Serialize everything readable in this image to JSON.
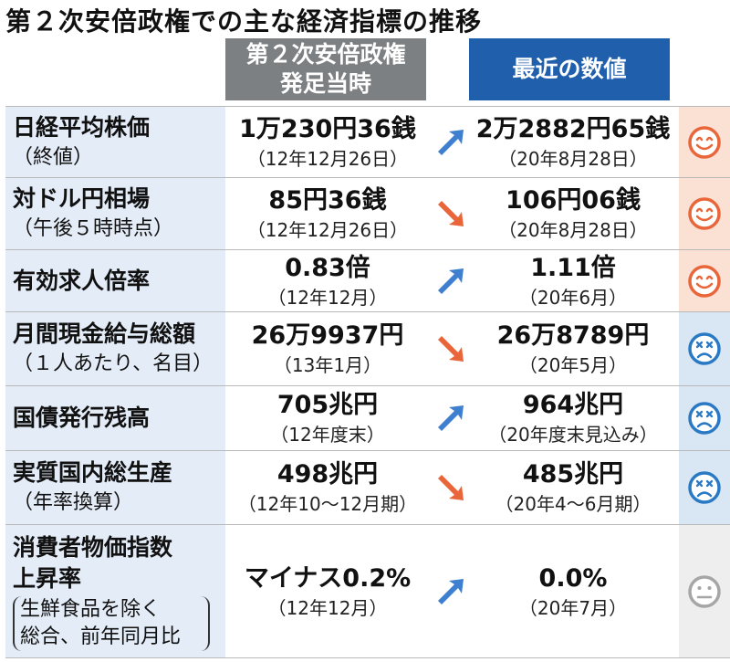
{
  "title": "第２次安倍政権での主な経済指標の推移",
  "headers": {
    "start_line1": "第２次安倍政権",
    "start_line2": "発足当時",
    "recent": "最近の数値"
  },
  "colors": {
    "up_arrow": "#3e7fd0",
    "down_arrow": "#e8663a",
    "good_face": "#e8663a",
    "bad_face": "#2a79c5",
    "neutral_face": "#a6a6a6"
  },
  "rows": [
    {
      "label": "日経平均株価",
      "label_sub": "（終値）",
      "start_value": "1万230円36銭",
      "start_date": "（12年12月26日）",
      "recent_value": "2万2882円65銭",
      "recent_date": "（20年8月28日）",
      "trend": "up",
      "trend_icon": "up-arrow-icon",
      "evaluation": "good",
      "face_icon": "smile-face-icon"
    },
    {
      "label": "対ドル円相場",
      "label_sub": "（午後５時時点）",
      "start_value": "85円36銭",
      "start_date": "（12年12月26日）",
      "recent_value": "106円06銭",
      "recent_date": "（20年8月28日）",
      "trend": "down",
      "trend_icon": "down-arrow-icon",
      "evaluation": "good",
      "face_icon": "smile-face-icon"
    },
    {
      "label": "有効求人倍率",
      "label_sub": "",
      "start_value": "0.83倍",
      "start_date": "（12年12月）",
      "recent_value": "1.11倍",
      "recent_date": "（20年6月）",
      "trend": "up",
      "trend_icon": "up-arrow-icon",
      "evaluation": "good",
      "face_icon": "smile-face-icon"
    },
    {
      "label": "月間現金給与総額",
      "label_sub": "（１人あたり、名目）",
      "start_value": "26万9937円",
      "start_date": "（13年1月）",
      "recent_value": "26万8789円",
      "recent_date": "（20年5月）",
      "trend": "down",
      "trend_icon": "down-arrow-icon",
      "evaluation": "bad",
      "face_icon": "sad-face-icon"
    },
    {
      "label": "国債発行残高",
      "label_sub": "",
      "start_value": "705兆円",
      "start_date": "（12年度末）",
      "recent_value": "964兆円",
      "recent_date": "（20年度末見込み）",
      "trend": "up",
      "trend_icon": "up-arrow-icon",
      "evaluation": "bad",
      "face_icon": "sad-face-icon"
    },
    {
      "label": "実質国内総生産",
      "label_sub": "（年率換算）",
      "start_value": "498兆円",
      "start_date": "（12年10～12月期）",
      "recent_value": "485兆円",
      "recent_date": "（20年4～6月期）",
      "trend": "down",
      "trend_icon": "down-arrow-icon",
      "evaluation": "bad",
      "face_icon": "sad-face-icon"
    },
    {
      "label": "消費者物価指数",
      "label_line2": "上昇率",
      "label_paren_line1": "生鮮食品を除く",
      "label_paren_line2": "総合、前年同月比",
      "start_value": "マイナス0.2%",
      "start_date": "（12年12月）",
      "recent_value": "0.0%",
      "recent_date": "（20年7月）",
      "trend": "up",
      "trend_icon": "up-arrow-icon",
      "evaluation": "neutral",
      "face_icon": "neutral-face-icon"
    }
  ]
}
